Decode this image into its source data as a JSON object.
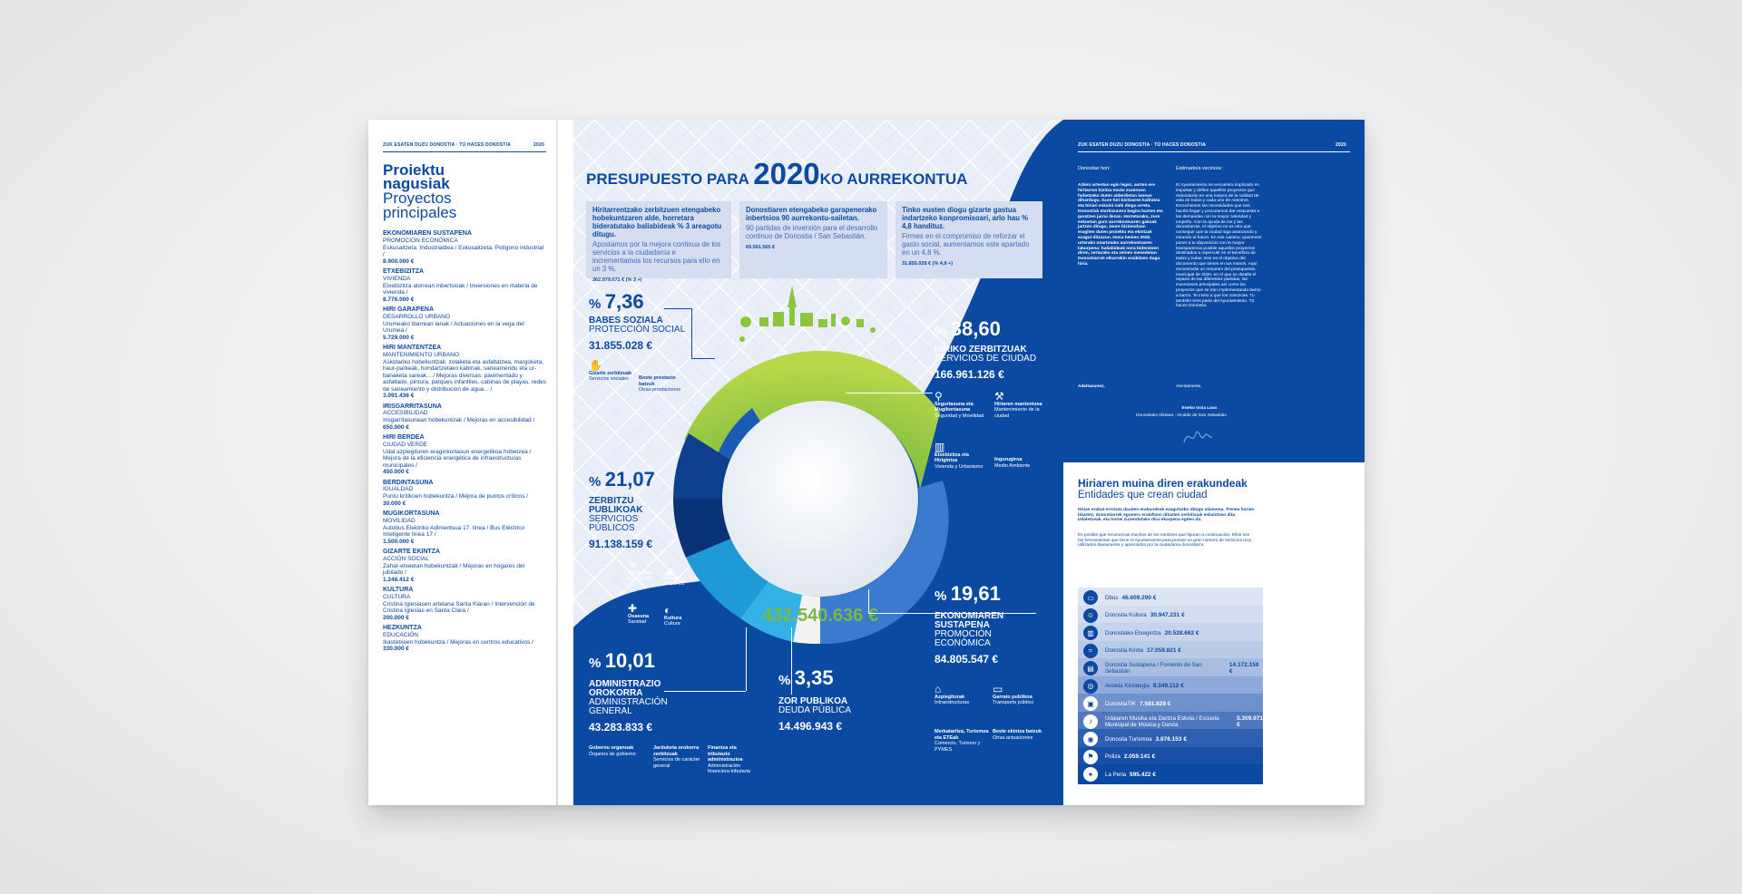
{
  "left_page": {
    "header_left": "ZUK ESATEN DUZU DONOSTIA · TÚ HACES DONOSTIA",
    "header_right": "2020",
    "title_eu_1": "Proiektu",
    "title_eu_2": "nagusiak",
    "title_es_1": "Proyectos",
    "title_es_2": "principales",
    "projects": [
      {
        "title_eu": "EKONOMIAREN SUSTAPENA",
        "title_es": "PROMOCIÓN ECONÓMICA",
        "desc": "Eskusaitzeta. Industrialdea / Eskusaitzeta. Polígono industrial /",
        "amount": "8.900.000 €"
      },
      {
        "title_eu": "ETXEBIZITZA",
        "title_es": "VIVIENDA",
        "desc": "Etxebizitza alorrean inbertsioak / Inversiones en materia de vivienda /",
        "amount": "8.776.000 €"
      },
      {
        "title_eu": "HIRI GARAPENA",
        "title_es": "DESARROLLO URBANO",
        "desc": "Urumeako ibarrean lanak / Actuaciones en la vega del Urumea /",
        "amount": "5.729.000 €"
      },
      {
        "title_eu": "HIRI MANTENTZEA",
        "title_es": "MANTENIMIENTO URBANO",
        "desc": "Askotariko hobekuntzak: zolaketa eta asfaltatzea, margoketa, haur-parkeak, hondartzetako kabinak, saneamendu eta ur-banaketa sareak... / Mejoras diversas: pavimentado y asfaltado, pintura, parques infantiles, cabinas de playas, redes de saneamiento y distribución de agua... /",
        "amount": "3.091.436 €"
      },
      {
        "title_eu": "IRISGARRITASUNA",
        "title_es": "ACCESIBILIDAD",
        "desc": "Irisgarritasunean hobekuntzak / Mejoras en accesibilidad /",
        "amount": "650.000 €"
      },
      {
        "title_eu": "HIRI BERDEA",
        "title_es": "CIUDAD VERDE",
        "desc": "Udal azpiegituren eraginkortasun energetikoa hobetzea / Mejora de la eficiencia energética de infraestructuras municipales /",
        "amount": "450.000 €"
      },
      {
        "title_eu": "BERDINTASUNA",
        "title_es": "IGUALDAD",
        "desc": "Puntu kritikoen hobekuntza / Mejora de puntos críticos /",
        "amount": "30.000 €"
      },
      {
        "title_eu": "MUGIKORTASUNA",
        "title_es": "MOVILIDAD",
        "desc": "Autobus Elektriko Adimentsua 17. linea / Bus Eléctrico Inteligente línea 17 /",
        "amount": "1.500.000 €"
      },
      {
        "title_eu": "GIZARTE EKINTZA",
        "title_es": "ACCIÓN SOCIAL",
        "desc": "Zahar-etxeetan hobekuntzak / Mejoras en hogares del jubilado /",
        "amount": "1.248.412 €"
      },
      {
        "title_eu": "KULTURA",
        "title_es": "CULTURA",
        "desc": "Cristina Iglesiasen artelana Santa Klaran / Intervención de Cristina Iglesias en Santa Clara /",
        "amount": "200.000 €"
      },
      {
        "title_eu": "HEZKUNTZA",
        "title_es": "EDUCACIÓN",
        "desc": "Ikastetxeen hobekuntza / Mejoras en centros educativos /",
        "amount": "330.000 €"
      }
    ]
  },
  "center": {
    "title_prefix": "PRESUPUESTO PARA",
    "title_year": "2020",
    "title_suffix": "KO AURREKONTUA",
    "boxes": [
      {
        "eu": "Hiritarrentzako zerbitzuen etengabeko hobekuntzaren alde, horretara bideratutako baliabideak % 3 areagotu ditugu.",
        "es": "Apostamos por la mejora continua de los servicios a la ciudadanía e incrementamos los recursos para ello en un 3 %.",
        "fig": "362.979.071 € (% 3 +)"
      },
      {
        "eu": "Donostiaren etengabeko garapenerako inbertsioa 90 aurrekontu-sailetan.",
        "es": "90 partidas de inversión para el desarrollo continuo de Donostia / San Sebastián.",
        "fig": "69.561.565 €"
      },
      {
        "eu": "Tinko eusten diogu gizarte gastua indartzeko konpromisoari, arlo hau % 4,8 handituz.",
        "es": "Firmes en el compromiso de reforzar el gasto social, aumentamos este apartado en un 4,8 %.",
        "fig": "31.855.028 € (% 4,8 +)"
      }
    ],
    "total": "432.540.636 €",
    "categories": [
      {
        "pct_sym": "%",
        "pct": "7,36",
        "eu": "BABES SOZIALA",
        "es": "PROTECCIÓN SOCIAL",
        "amount": "31.855.028 €",
        "color": "#9ccb45"
      },
      {
        "pct_sym": "%",
        "pct": "38,60",
        "eu": "HIRIKO ZERBITZUAK",
        "es": "SERVICIOS DE CIUDAD",
        "amount": "166.961.126 €",
        "color": "#82bd3e"
      },
      {
        "pct_sym": "%",
        "pct": "21,07",
        "eu": "ZERBITZU PUBLIKOAK",
        "es": "SERVICIOS PÚBLICOS",
        "amount": "91.138.159 €",
        "color": "#0d3f8c"
      },
      {
        "pct_sym": "%",
        "pct": "19,61",
        "eu": "EKONOMIAREN SUSTAPENA",
        "es": "PROMOCIÓN ECONÓMICA",
        "amount": "84.805.547 €",
        "color": "#2f72c7"
      },
      {
        "pct_sym": "%",
        "pct": "10,01",
        "eu": "ADMINISTRAZIO OROKORRA",
        "es": "ADMINISTRACIÓN GENERAL",
        "amount": "43.283.833 €",
        "color": "#1e9ad6"
      },
      {
        "pct_sym": "%",
        "pct": "3,35",
        "eu": "ZOR PUBLIKOA",
        "es": "DEUDA PÚBLICA",
        "amount": "14.496.943 €",
        "color": "#f2f2f2"
      }
    ],
    "subs": {
      "babes": [
        {
          "eu": "Gizarte zerbitzuak",
          "es": "Servicios sociales"
        },
        {
          "eu": "Beste prestazio batzuk",
          "es": "Otras prestaciones"
        }
      ],
      "zerbitzu": [
        {
          "eu": "Hezkuntza",
          "es": "Educación"
        },
        {
          "eu": "Kirola",
          "es": "Deportes"
        },
        {
          "eu": "Osasuna",
          "es": "Sanidad"
        },
        {
          "eu": "Kultura",
          "es": "Cultura"
        }
      ],
      "hiriko": [
        {
          "eu": "Segurtasuna eta Mugikortasuna",
          "es": "Seguridad y Movilidad"
        },
        {
          "eu": "Hiriaren mantentzea",
          "es": "Mantenimiento de la ciudad"
        },
        {
          "eu": "Etxebizitza eta Hirigintza",
          "es": "Vivienda y Urbanismo"
        },
        {
          "eu": "Ingurugiroa",
          "es": "Medio Ambiente"
        }
      ],
      "ekonomia": [
        {
          "eu": "Azpiegiturak",
          "es": "Infraestructuras"
        },
        {
          "eu": "Garraio publikoa",
          "es": "Transporte público"
        },
        {
          "eu": "Merkataritza, Turismoa eta ETEak",
          "es": "Comercio, Turismo y PYMES"
        },
        {
          "eu": "Beste ekintza batzuk",
          "es": "Otras actuaciones"
        }
      ],
      "admin": [
        {
          "eu": "Gobernu organoak",
          "es": "Órganos de gobierno"
        },
        {
          "eu": "Jarduketa orokorra zerbitzuak",
          "es": "Servicios de carácter general"
        },
        {
          "eu": "Finantza eta tributazio administrazioa",
          "es": "Administración financiera tributaria"
        }
      ]
    }
  },
  "right_page": {
    "header_left": "ZUK ESATEN DUZU DONOSTIA · TÚ HACES DONOSTIA",
    "header_right": "2020",
    "greet_eu": "Donostiar hori:",
    "greet_es": "Estimado/a vecino/a:",
    "letter_eu": "Azken urteotan egin legez, aurten ere hiritarron bizitza modu zuzenean hobetzeko duten alderdietan lanean dihardugu. Gure hiri-bizitzaren kalitatea eta hiriari eskaini nahi diegu arreta. Donostiak etorkizunera begira hazten eta garatzen jarrai dezan. Horretarako, zure eskuetan gure aurrekontuaren gakoak jartzen ditugu, zeure bizimoduan eragiten duten proiektu eta ekintzak ezagut ditzazun. Hona hemen 2020. urterako onartutako aurrekontuaren laburpena: baliabideak nora bideratzen diren, zertarako eta zeinen mesedetan. Donostiarrok elkarrekin eraikitzen dugu hiria.",
    "sign_eu": "Adeitasunez,",
    "letter_es": "El Ayuntamiento se encuentra implicado en impulsar y definir aquellos proyectos que redundarán en una mejora de la calidad de vida de todos y cada uno de nosotros. Escuchamos las necesidades que nos hacéis llegar y procuramos dar respuesta a las demandas con la mayor celeridad y empeño. Con la ayuda de los y las donostiarras, el objetivo no es otro que conseguir que la ciudad siga avanzando y mirando al futuro. En ese camino, queremos poner a tu disposición con la mayor transparencia posible aquellos proyectos destinados a repercutir en el beneficio de todos y todas. Ese es el objetivo del documento que tienes en tus manos. Aquí encontrarás un resumen del presupuesto municipal de 2020, en el que se detalla el reparto de las diferentes partidas, las inversiones principales así como los proyectos que se irán implementando barrio a barrio. Te invito a que los conozcas. Tu también eres parte del Ayuntamiento. Tú haces Donostia.",
    "sign_es": "Atentamente,",
    "signer": "Eneko Goia Laso",
    "signer_role": "Donostiako Alkatea - Alcalde de San Sebastián",
    "ent_title_eu": "Hiriaren muina diren erakundeak",
    "ent_title_es": "Entidades que crean ciudad",
    "ent_p_eu": "Hirian erabat errotuta dauden erakundeak ezagutzeko ditugu aliamena. Trenea horien bitartez, donostiarrek egunero erabiltzen dituzten zerbitzuak eskaintzen ditu Udaletxeak, eta horiei zuzendutako diru-ekarpena egiten du.",
    "ent_p_es": "Es posible que reconozcas muchos de los nombres que figuran a continuación. Ellos son las herramientas que tiene el Ayuntamiento para prestar un gran número de servicios muy utilizados diariamente y apreciados por la ciudadanía donostiarra.",
    "entities": [
      {
        "name": "Dbus",
        "amount": "46.609.290 €",
        "icon": "bus-icon",
        "glyph": "▭"
      },
      {
        "name": "Donostia Kultura",
        "amount": "30.947.231 €",
        "icon": "theater-icon",
        "glyph": "☺"
      },
      {
        "name": "Donostiako Etxegintza",
        "amount": "20.528.662 €",
        "icon": "building-icon",
        "glyph": "▥"
      },
      {
        "name": "Donostia Kirola",
        "amount": "17.059.821 €",
        "icon": "swimmer-icon",
        "glyph": "≈"
      },
      {
        "name": "Donostia Sustapena / Fomento de San Sebastián",
        "amount": "14.172.159 €",
        "icon": "document-icon",
        "glyph": "▤"
      },
      {
        "name": "Anoeta Kiroldegia",
        "amount": "8.349.112 €",
        "icon": "ball-icon",
        "glyph": "◎"
      },
      {
        "name": "DonostiaTIK",
        "amount": "7.581.829 €",
        "icon": "monitor-icon",
        "glyph": "▣"
      },
      {
        "name": "Udalaren Musika eta Dantza Eskola / Escuela Municipal de Música y Danza",
        "amount": "5.309.971 €",
        "icon": "music-icon",
        "glyph": "♪"
      },
      {
        "name": "Donostia Turismoa",
        "amount": "3.876.153 €",
        "icon": "camera-icon",
        "glyph": "◉"
      },
      {
        "name": "Poliza",
        "amount": "2.059.141 €",
        "icon": "flag-icon",
        "glyph": "⚑"
      },
      {
        "name": "La Perla",
        "amount": "595.422 €",
        "icon": "spa-icon",
        "glyph": "✦"
      }
    ]
  }
}
